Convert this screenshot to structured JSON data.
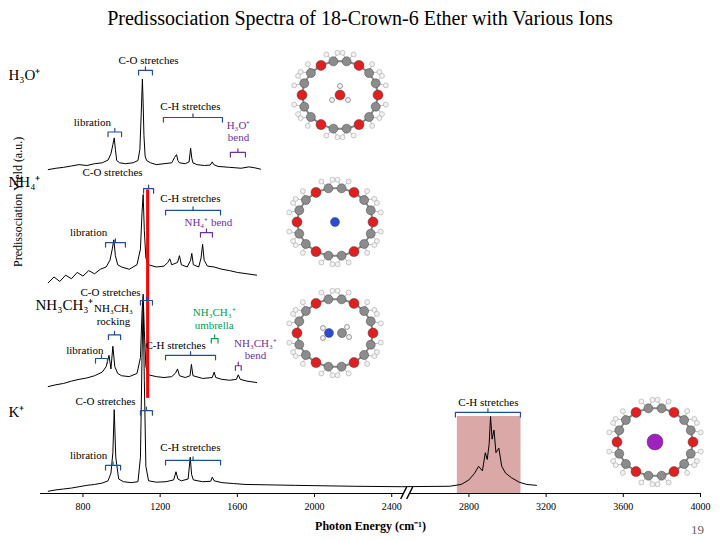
{
  "chart_data": {
    "type": "line",
    "title": "Predissociation Spectra of 18-Crown-6 Ether with Various Ions",
    "x_label": "Photon Energy (cm⁻¹)",
    "y_label": "Predissociation Yield (a.u.)",
    "xlim": [
      580,
      4000
    ],
    "xticks": [
      800,
      1200,
      1600,
      2000,
      2400,
      2800,
      3200,
      3600,
      4000
    ],
    "ylim": [
      0,
      100
    ],
    "tick_labels": "x",
    "grid": false,
    "series": [
      {
        "name": "H₃O⁺",
        "color": "#000000",
        "label_x": 414,
        "label_y": 92.3,
        "x": [
          620,
          660,
          700,
          740,
          780,
          820,
          860,
          900,
          930,
          945,
          955,
          962,
          968,
          975,
          990,
          1020,
          1060,
          1085,
          1095,
          1102,
          1108,
          1112,
          1116,
          1122,
          1130,
          1150,
          1180,
          1220,
          1260,
          1275,
          1285,
          1292,
          1300,
          1330,
          1350,
          1358,
          1364,
          1370,
          1390,
          1430,
          1460,
          1470,
          1478,
          1500,
          1560,
          1620,
          1660,
          1690,
          1720
        ],
        "values": [
          71.5,
          71.8,
          72,
          72.3,
          72.6,
          72.4,
          72.8,
          73,
          73.6,
          75,
          77,
          78.5,
          76,
          73.5,
          73,
          72.8,
          73,
          73.5,
          76,
          84,
          91.5,
          86,
          79,
          74.5,
          73.5,
          73,
          72.6,
          72.8,
          73,
          74.2,
          74.8,
          73.5,
          73,
          72.8,
          73.2,
          76.2,
          74,
          73,
          72.6,
          72.4,
          72.5,
          73.2,
          72.6,
          72.2,
          72,
          71.8,
          72.1,
          71.9,
          71.6
        ]
      },
      {
        "name": "NH₄⁺",
        "color": "#000000",
        "label_x": 414,
        "label_y": 68.7,
        "x": [
          620,
          650,
          680,
          710,
          740,
          770,
          800,
          830,
          860,
          890,
          920,
          940,
          952,
          960,
          968,
          980,
          1000,
          1040,
          1080,
          1098,
          1106,
          1112,
          1118,
          1126,
          1140,
          1180,
          1220,
          1240,
          1250,
          1260,
          1290,
          1300,
          1310,
          1340,
          1358,
          1364,
          1372,
          1400,
          1412,
          1420,
          1428,
          1445,
          1480,
          1520,
          1560,
          1600,
          1650,
          1700
        ],
        "values": [
          46.5,
          47.8,
          46.8,
          48.2,
          47.4,
          48.8,
          48,
          49.2,
          48.5,
          49.5,
          50,
          51.5,
          54,
          56,
          52.5,
          50.5,
          50,
          49.5,
          50.5,
          54,
          62,
          66,
          58,
          52,
          50.5,
          50,
          50.2,
          51,
          51.8,
          50.5,
          51,
          52.5,
          50.5,
          50,
          51.5,
          53,
          50.5,
          50,
          52,
          55,
          51.5,
          50.2,
          50,
          49.5,
          49.2,
          48.8,
          48.5,
          48.2
        ]
      },
      {
        "name": "NH₃CH₃⁺",
        "color": "#000000",
        "label_x": 554,
        "label_y": 41.5,
        "x": [
          620,
          660,
          700,
          740,
          780,
          820,
          860,
          900,
          920,
          935,
          945,
          955,
          965,
          980,
          1000,
          1040,
          1080,
          1098,
          1106,
          1112,
          1118,
          1126,
          1140,
          1180,
          1220,
          1260,
          1280,
          1290,
          1300,
          1330,
          1355,
          1362,
          1370,
          1420,
          1470,
          1480,
          1488,
          1520,
          1560,
          1595,
          1605,
          1615,
          1650,
          1700
        ],
        "values": [
          23.6,
          24,
          24.3,
          24.8,
          25.2,
          25.5,
          26,
          26.8,
          28,
          30.5,
          27.5,
          32.5,
          28,
          26.5,
          26,
          25.8,
          26.5,
          30,
          40,
          44,
          36,
          28,
          26.2,
          25.8,
          25.6,
          25.8,
          26.6,
          27.5,
          26,
          25.6,
          26,
          28.5,
          26,
          25.4,
          25.6,
          26.8,
          25.6,
          25.2,
          25,
          25.2,
          26.2,
          25.2,
          24.8,
          24.5
        ]
      },
      {
        "name": "K⁺",
        "color": "#000000",
        "label_x": 414,
        "label_y": 17.9,
        "x": [
          620,
          660,
          700,
          740,
          780,
          820,
          860,
          900,
          930,
          945,
          955,
          962,
          970,
          985,
          1010,
          1050,
          1085,
          1098,
          1106,
          1112,
          1118,
          1126,
          1140,
          1180,
          1230,
          1270,
          1282,
          1292,
          1310,
          1345,
          1356,
          1363,
          1372,
          1420,
          1462,
          1470,
          1480,
          1520,
          1580,
          1640,
          1900,
          2200,
          2450,
          2700,
          2760,
          2800,
          2830,
          2850,
          2870,
          2885,
          2895,
          2905,
          2912,
          2920,
          2930,
          2940,
          2955,
          2970,
          2990,
          3020,
          3060,
          3100,
          3150
        ],
        "values": [
          0.5,
          0.8,
          1,
          1.2,
          1.5,
          1.8,
          2,
          2.3,
          2.8,
          4.5,
          9,
          18.5,
          8,
          3.2,
          2.6,
          2.4,
          2.6,
          8,
          30,
          42,
          25,
          6,
          2.8,
          2.5,
          2.6,
          3,
          4.8,
          3.2,
          2.8,
          3.2,
          8,
          4.2,
          3,
          2.6,
          2.7,
          3.6,
          2.8,
          2.4,
          2.2,
          2,
          1.8,
          1.6,
          1.5,
          1.6,
          2,
          3,
          4.5,
          6,
          5,
          9,
          7.5,
          11,
          17,
          12,
          14,
          9,
          10,
          6,
          4.5,
          3.5,
          2.5,
          2,
          1.8
        ]
      }
    ],
    "reference_line": {
      "x": 1135,
      "from": 21,
      "to": 67,
      "color": "#ff0000"
    },
    "highlight": {
      "x": [
        2740,
        3070
      ],
      "y": [
        0,
        17
      ],
      "color": "#dba8a8"
    },
    "annotations": [
      {
        "text": "C-O stretches",
        "x": [
          1088,
          1160
        ],
        "y": 93.4,
        "text_x": 1140,
        "text_y": 95.6,
        "color": "#000000",
        "bracket_color": "#1f4e9c"
      },
      {
        "text": "C-H stretches",
        "x": [
          1217,
          1523
        ],
        "y": 83,
        "text_x": 1357,
        "text_y": 85.6,
        "color": "#000000",
        "bracket_color": "#1f4e9c"
      },
      {
        "text": "libration",
        "x": [
          930,
          1000
        ],
        "y": 79.8,
        "text_x": 849,
        "text_y": 82,
        "color": "#000000",
        "bracket_color": "#1f4e9c"
      },
      {
        "text": "H₃O⁺\nbend",
        "x": [
          1564,
          1642
        ],
        "y": 75.3,
        "text_x": 1606,
        "text_y": 80,
        "color": "#7030a0",
        "bracket_color": "#7030a0"
      },
      {
        "text": "C-O stretches",
        "x": [
          1114,
          1166
        ],
        "y": 67.3,
        "text_x": 953,
        "text_y": 70.9,
        "color": "#000000",
        "bracket_color": "#1f4e9c"
      },
      {
        "text": "C-H stretches",
        "x": [
          1228,
          1513
        ],
        "y": 62.5,
        "text_x": 1357,
        "text_y": 65.1,
        "color": "#000000",
        "bracket_color": "#1f4e9c"
      },
      {
        "text": "NH₄⁺ bend",
        "x": [
          1409,
          1471
        ],
        "y": 57.6,
        "text_x": 1450,
        "text_y": 59.8,
        "color": "#7030a0",
        "bracket_color": "#7030a0"
      },
      {
        "text": "libration",
        "x": [
          917,
          1020
        ],
        "y": 55.4,
        "text_x": 829,
        "text_y": 57.6,
        "color": "#000000",
        "bracket_color": "#1f4e9c"
      },
      {
        "text": "C-O stretches",
        "x": [
          1098,
          1160
        ],
        "y": 42.6,
        "text_x": 943,
        "text_y": 44.4,
        "color": "#000000",
        "bracket_color": "#1f4e9c"
      },
      {
        "text": "NH₃CH₃\nrocking",
        "x": [
          932,
          995
        ],
        "y": 35,
        "text_x": 958,
        "text_y": 39.5,
        "color": "#000000",
        "bracket_color": "#1f4e9c"
      },
      {
        "text": "libration",
        "x": [
          865,
          927
        ],
        "y": 29.8,
        "text_x": 810,
        "text_y": 31.6,
        "color": "#000000",
        "bracket_color": "#1f4e9c"
      },
      {
        "text": "NH₃CH₃⁺\numbrella",
        "x": [
          1465,
          1500
        ],
        "y": 34.2,
        "text_x": 1480,
        "text_y": 38.6,
        "color": "#00a050",
        "bracket_color": "#00a050"
      },
      {
        "text": "C-H stretches",
        "x": [
          1228,
          1487
        ],
        "y": 30.5,
        "text_x": 1280,
        "text_y": 32.7,
        "color": "#000000",
        "bracket_color": "#1f4e9c"
      },
      {
        "text": "NH₃CH₃⁺\nbend",
        "x": [
          1590,
          1620
        ],
        "y": 28.2,
        "text_x": 1694,
        "text_y": 31.8,
        "color": "#7030a0",
        "bracket_color": "#7030a0"
      },
      {
        "text": "C-O stretches",
        "x": [
          1098,
          1160
        ],
        "y": 18.3,
        "text_x": 917,
        "text_y": 20.5,
        "color": "#000000",
        "bracket_color": "#1f4e9c"
      },
      {
        "text": "C-H stretches",
        "x": [
          1228,
          1513
        ],
        "y": 7.3,
        "text_x": 1357,
        "text_y": 10.2,
        "color": "#000000",
        "bracket_color": "#1f4e9c"
      },
      {
        "text": "libration",
        "x": [
          917,
          995
        ],
        "y": 6.2,
        "text_x": 829,
        "text_y": 8.4,
        "color": "#000000",
        "bracket_color": "#1f4e9c"
      },
      {
        "text": "C-H stretches",
        "x": [
          2730,
          3067
        ],
        "y": 17.9,
        "text_x": 2901,
        "text_y": 20.1,
        "color": "#000000",
        "bracket_color": "#1f4e9c"
      }
    ],
    "page_number": "19"
  }
}
